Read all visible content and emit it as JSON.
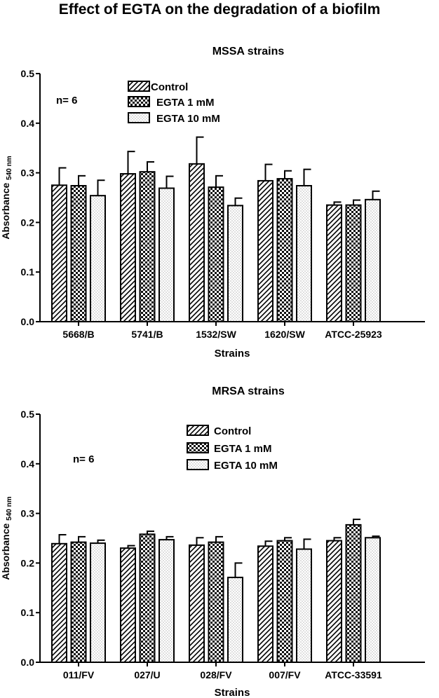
{
  "title": "Effect of EGTA on the degradation of a biofilm",
  "chart_data": [
    {
      "type": "bar",
      "title": "MSSA strains",
      "xlabel": "Strains",
      "ylabel_main": "Absorbance",
      "ylabel_sub": "540 nm",
      "annotation": "n= 6",
      "ylim": [
        0,
        0.5
      ],
      "yticks": [
        "0.0",
        "0.1",
        "0.2",
        "0.3",
        "0.4",
        "0.5"
      ],
      "categories": [
        "5668/B",
        "5741/B",
        "1532/SW",
        "1620/SW",
        "ATCC-25923"
      ],
      "series": [
        {
          "name": "Control",
          "pattern": "hatch",
          "values": [
            0.275,
            0.298,
            0.318,
            0.284,
            0.235
          ],
          "errors": [
            0.035,
            0.045,
            0.054,
            0.033,
            0.006
          ]
        },
        {
          "name": "EGTA 1 mM",
          "pattern": "checker",
          "values": [
            0.274,
            0.302,
            0.271,
            0.288,
            0.235
          ],
          "errors": [
            0.02,
            0.02,
            0.023,
            0.016,
            0.01
          ]
        },
        {
          "name": "EGTA 10 mM",
          "pattern": "dots",
          "values": [
            0.254,
            0.269,
            0.234,
            0.274,
            0.246
          ],
          "errors": [
            0.031,
            0.024,
            0.015,
            0.033,
            0.017
          ]
        }
      ]
    },
    {
      "type": "bar",
      "title": "MRSA strains",
      "xlabel": "Strains",
      "ylabel_main": "Absorbance",
      "ylabel_sub": "540 nm",
      "annotation": "n= 6",
      "ylim": [
        0,
        0.5
      ],
      "yticks": [
        "0.0",
        "0.1",
        "0.2",
        "0.3",
        "0.4",
        "0.5"
      ],
      "categories": [
        "011/FV",
        "027/U",
        "028/FV",
        "007/FV",
        "ATCC-33591"
      ],
      "series": [
        {
          "name": "Control",
          "pattern": "hatch",
          "values": [
            0.239,
            0.23,
            0.236,
            0.234,
            0.245
          ],
          "errors": [
            0.018,
            0.005,
            0.015,
            0.01,
            0.006
          ]
        },
        {
          "name": "EGTA 1 mM",
          "pattern": "checker",
          "values": [
            0.242,
            0.258,
            0.242,
            0.245,
            0.277
          ],
          "errors": [
            0.011,
            0.006,
            0.011,
            0.006,
            0.011
          ]
        },
        {
          "name": "EGTA 10 mM",
          "pattern": "dots",
          "values": [
            0.24,
            0.247,
            0.171,
            0.228,
            0.251
          ],
          "errors": [
            0.006,
            0.006,
            0.029,
            0.02,
            0.003
          ]
        }
      ]
    }
  ]
}
